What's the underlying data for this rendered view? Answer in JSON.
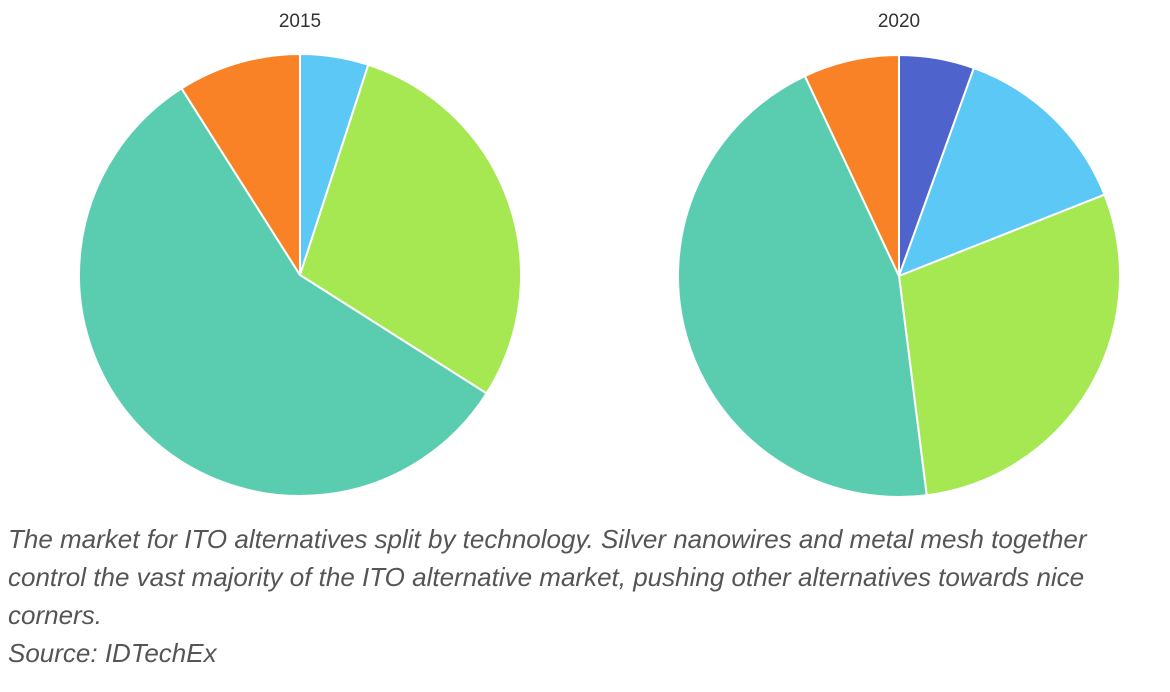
{
  "chart_data": [
    {
      "type": "pie",
      "title": "2015",
      "slices": [
        {
          "value": 5,
          "color": "#5bc8f5"
        },
        {
          "value": 29,
          "color": "#a5e852"
        },
        {
          "value": 57,
          "color": "#5acdb0"
        },
        {
          "value": 9,
          "color": "#f98126"
        }
      ]
    },
    {
      "type": "pie",
      "title": "2020",
      "slices": [
        {
          "value": 5.5,
          "color": "#4f63cc"
        },
        {
          "value": 13.5,
          "color": "#5bc8f5"
        },
        {
          "value": 29,
          "color": "#a5e852"
        },
        {
          "value": 45,
          "color": "#5acdb0"
        },
        {
          "value": 7,
          "color": "#f98126"
        }
      ]
    }
  ],
  "caption": {
    "text": "The market for ITO alternatives split by technology. Silver nanowires and metal mesh together control the vast majority of the ITO alternative market, pushing other alternatives towards nice corners.",
    "source": "Source: IDTechEx"
  }
}
